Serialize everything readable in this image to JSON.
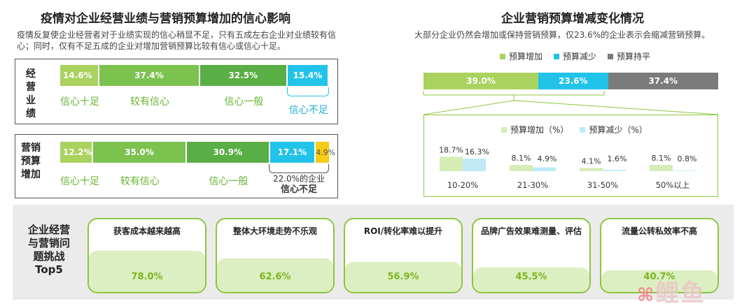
{
  "left": {
    "title": "疫情对企业经营业绩与营销预算增加的信心影响",
    "subtitle": "疫情反复使企业经营者对于业绩实现的信心稍显不足，只有五成左右企业对业绩较有信心；同时，仅有不足五成的企业对增加营销预算比较有信心或信心十足。"
  },
  "right": {
    "title": "企业营销预算增减变化情况",
    "subtitle": "大部分企业仍然会增加或保持营销预算，仅23.6%的企业表示会缩减营销预算。"
  },
  "bottom": {
    "label": "企业经营与营销问题挑战Top5"
  },
  "watermark": "鲤鱼",
  "colors": {
    "lightgreen": "#a9d25e",
    "midgreen": "#7cc24f",
    "darkgreen": "#59ae45",
    "cyan": "#22c3e8",
    "yellow": "#f5cc16",
    "gray": "#7b7b7b",
    "panel": "#ebebeb",
    "palegreen": "#d6ecb6",
    "palecyan": "#bfeaf7"
  },
  "chart_data": [
    {
      "type": "bar",
      "stacked": true,
      "orientation": "horizontal",
      "categories": [
        "经营业绩",
        "营销预算增加"
      ],
      "series": [
        {
          "name": "信心十足",
          "values": [
            14.6,
            12.2
          ]
        },
        {
          "name": "较有信心",
          "values": [
            37.4,
            35.0
          ]
        },
        {
          "name": "信心一般",
          "values": [
            32.5,
            30.9
          ]
        },
        {
          "name": "信心不足",
          "values": [
            15.4,
            17.1
          ]
        },
        {
          "name": "",
          "values": [
            null,
            4.9
          ]
        }
      ],
      "value_labels": [
        [
          "14.6%",
          "37.4%",
          "32.5%",
          "15.4%"
        ],
        [
          "12.2%",
          "35.0%",
          "30.9%",
          "17.1%",
          "4.9%"
        ]
      ],
      "segment_labels": [
        [
          "信心十足",
          "较有信心",
          "信心一般",
          "信心不足"
        ],
        [
          "信心十足",
          "较有信心",
          "信心一般"
        ]
      ],
      "annotation": [
        "22.0%的企业",
        "信心不足"
      ]
    },
    {
      "type": "bar",
      "stacked": true,
      "orientation": "horizontal",
      "legend": [
        "预算增加",
        "预算减少",
        "预算持平"
      ],
      "legend_position": "top",
      "values": [
        39.0,
        23.6,
        37.4
      ],
      "value_labels": [
        "39.0%",
        "23.6%",
        "37.4%"
      ]
    },
    {
      "type": "bar",
      "legend": [
        "预算增加（%）",
        "预算减少（%）"
      ],
      "legend_position": "top",
      "categories": [
        "10-20%",
        "21-30%",
        "31-50%",
        "50%以上"
      ],
      "series": [
        {
          "name": "预算增加（%）",
          "values": [
            18.7,
            8.1,
            4.1,
            8.1
          ]
        },
        {
          "name": "预算减少（%）",
          "values": [
            16.3,
            4.9,
            1.6,
            0.8
          ]
        }
      ],
      "value_labels": [
        [
          "18.7%",
          "8.1%",
          "4.1%",
          "8.1%"
        ],
        [
          "16.3%",
          "4.9%",
          "1.6%",
          "0.8%"
        ]
      ]
    },
    {
      "type": "bar",
      "categories": [
        "获客成本越来越高",
        "整体大环境走势不乐观",
        "ROI/转化率难以提升",
        "品牌广告效果难测量、评估",
        "流量公转私效率不高"
      ],
      "values": [
        78.0,
        62.6,
        56.9,
        45.5,
        40.7
      ],
      "value_labels": [
        "78.0%",
        "62.6%",
        "56.9%",
        "45.5%",
        "40.7%"
      ]
    }
  ]
}
